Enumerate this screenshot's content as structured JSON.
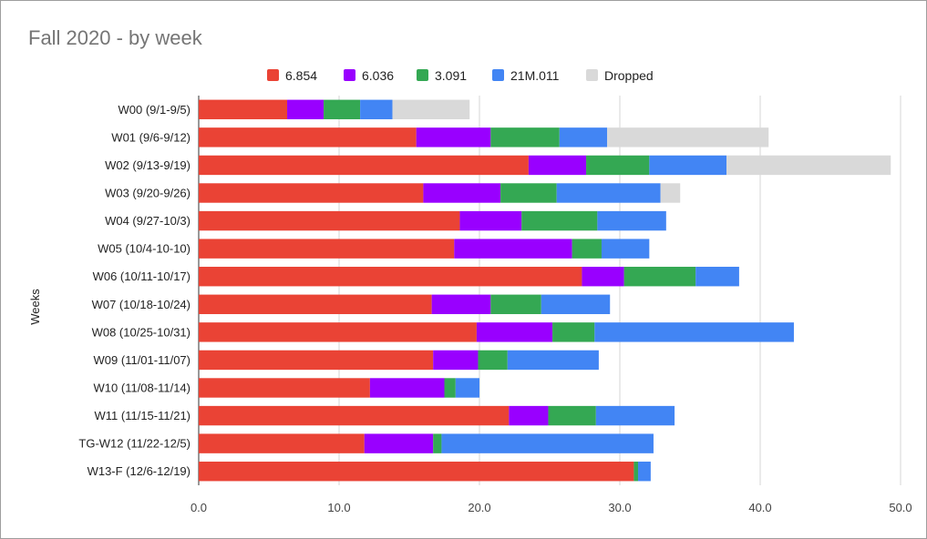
{
  "chart_data": {
    "type": "bar",
    "orientation": "horizontal",
    "stacked": true,
    "title": "Fall 2020 - by week",
    "ylabel": "Weeks",
    "xlabel": "",
    "xlim": [
      0,
      50
    ],
    "xticks": [
      "0.0",
      "10.0",
      "20.0",
      "30.0",
      "40.0",
      "50.0"
    ],
    "grid": true,
    "legend_position": "top",
    "categories": [
      "W00 (9/1-9/5)",
      "W01 (9/6-9/12)",
      "W02 (9/13-9/19)",
      "W03 (9/20-9/26)",
      "W04 (9/27-10/3)",
      "W05 (10/4-10-10)",
      "W06 (10/11-10/17)",
      "W07 (10/18-10/24)",
      "W08 (10/25-10/31)",
      "W09 (11/01-11/07)",
      "W10 (11/08-11/14)",
      "W11 (11/15-11/21)",
      "TG-W12 (11/22-12/5)",
      "W13-F (12/6-12/19)"
    ],
    "series": [
      {
        "name": "6.854",
        "color": "#ea4335",
        "values": [
          6.3,
          15.5,
          23.5,
          16.0,
          18.6,
          18.2,
          27.3,
          16.6,
          19.8,
          16.7,
          12.2,
          22.1,
          11.8,
          31.0
        ]
      },
      {
        "name": "6.036",
        "color": "#9900ff",
        "values": [
          2.6,
          5.3,
          4.1,
          5.5,
          4.4,
          8.4,
          3.0,
          4.2,
          5.4,
          3.2,
          5.3,
          2.8,
          4.9,
          0.0
        ]
      },
      {
        "name": "3.091",
        "color": "#34a853",
        "values": [
          2.6,
          4.9,
          4.5,
          4.0,
          5.4,
          2.1,
          5.1,
          3.6,
          3.0,
          2.1,
          0.8,
          3.4,
          0.6,
          0.3
        ]
      },
      {
        "name": "21M.011",
        "color": "#4285f4",
        "values": [
          2.3,
          3.4,
          5.5,
          7.4,
          4.9,
          3.4,
          3.1,
          4.9,
          14.2,
          6.5,
          1.7,
          5.6,
          15.1,
          0.9
        ]
      },
      {
        "name": "Dropped",
        "color": "#d9d9d9",
        "values": [
          5.5,
          11.5,
          11.7,
          1.4,
          0.0,
          0.0,
          0.0,
          0.0,
          0.0,
          0.0,
          0.0,
          0.0,
          0.0,
          0.0
        ]
      }
    ]
  }
}
